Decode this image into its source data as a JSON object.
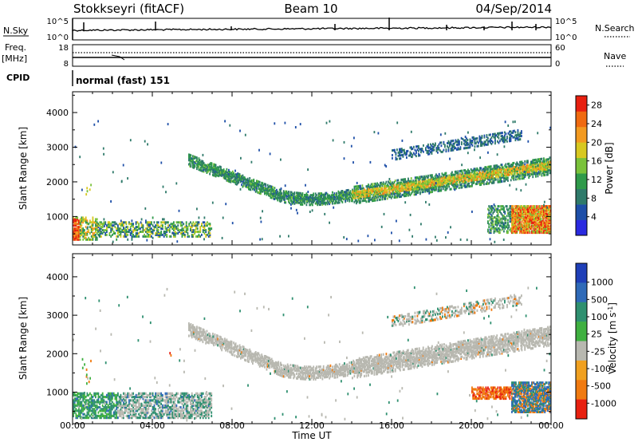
{
  "header": {
    "title": "Stokkseyri (fitACF)",
    "beam": "Beam 10",
    "date": "04/Sep/2014"
  },
  "top_panels": {
    "nsky_label": "N.Sky",
    "nsky_ticks": [
      "10^5",
      "10^0"
    ],
    "nsearch_label": "N.Search",
    "nsearch_ticks": [
      "10^5",
      "10^0"
    ],
    "freq_label": "Freq.",
    "freq_unit": "[MHz]",
    "freq_ticks": [
      "18",
      "8"
    ],
    "nave_label": "Nave",
    "nave_ticks": [
      "60",
      "0"
    ],
    "cpid_label": "CPID",
    "cpid_text": "normal (fast) 151"
  },
  "chart_data": [
    {
      "type": "heatmap",
      "title": "",
      "xlabel": "Time UT",
      "ylabel": "Slant Range [km]",
      "x_ticks": [
        "00:00",
        "04:00",
        "08:00",
        "12:00",
        "16:00",
        "20:00",
        "00:00"
      ],
      "xlim_hours": [
        0,
        24
      ],
      "y_ticks": [
        1000,
        2000,
        3000,
        4000
      ],
      "ylim": [
        180,
        4600
      ],
      "colorbar": {
        "label": "Power [dB]",
        "ticks": [
          "28",
          "24",
          "20",
          "16",
          "12",
          "8",
          "4"
        ],
        "range": [
          0,
          30
        ],
        "colors": [
          "#2a2ae0",
          "#1e4fa8",
          "#2f7a6a",
          "#2f9a4a",
          "#7ac23a",
          "#d8c820",
          "#f39a20",
          "#f06a10",
          "#e82010"
        ]
      },
      "features": [
        {
          "t": [
            0.0,
            0.35
          ],
          "r": [
            350,
            900
          ],
          "level": 25
        },
        {
          "t": [
            0.35,
            1.2
          ],
          "r": [
            300,
            1000
          ],
          "level": 16
        },
        {
          "t": [
            1.2,
            6.9
          ],
          "r": [
            400,
            800
          ],
          "level": 8
        },
        {
          "t": [
            5.8,
            14.5
          ],
          "r": [
            1400,
            2500
          ],
          "level": 8
        },
        {
          "t": [
            14.5,
            24.0
          ],
          "r": [
            1500,
            2500
          ],
          "level": 14
        },
        {
          "t": [
            16.0,
            22.5
          ],
          "r": [
            2700,
            3400
          ],
          "level": 6
        },
        {
          "t": [
            21.5,
            24.0
          ],
          "r": [
            600,
            1200
          ],
          "level": 24
        }
      ]
    },
    {
      "type": "heatmap",
      "title": "",
      "xlabel": "Time UT",
      "ylabel": "Slant Range [km]",
      "x_ticks": [
        "00:00",
        "04:00",
        "08:00",
        "12:00",
        "16:00",
        "20:00",
        "00:00"
      ],
      "xlim_hours": [
        0,
        24
      ],
      "y_ticks": [
        1000,
        2000,
        3000,
        4000
      ],
      "ylim": [
        180,
        4600
      ],
      "colorbar": {
        "label": "Velocity [m s^-1]",
        "ticks": [
          "1000",
          "500",
          "100",
          "25",
          "-25",
          "-100",
          "-500",
          "-1000"
        ],
        "colors": [
          "#1f3fb8",
          "#2f6ab8",
          "#2f9070",
          "#3fb040",
          "#b8b8b0",
          "#f0a020",
          "#f07a10",
          "#e82010"
        ]
      },
      "features": [
        {
          "t": [
            0.0,
            7.0
          ],
          "r": [
            300,
            900
          ],
          "velocity": 25
        },
        {
          "t": [
            0.0,
            2.0
          ],
          "r": [
            300,
            700
          ],
          "velocity": 100
        },
        {
          "t": [
            5.8,
            24.0
          ],
          "r": [
            1400,
            2600
          ],
          "velocity": 0
        },
        {
          "t": [
            16.0,
            22.5
          ],
          "r": [
            2700,
            3500
          ],
          "velocity": 0
        },
        {
          "t": [
            20.0,
            22.0
          ],
          "r": [
            800,
            1100
          ],
          "velocity": -500
        },
        {
          "t": [
            22.0,
            24.0
          ],
          "r": [
            500,
            1200
          ],
          "velocity": 500
        }
      ]
    }
  ]
}
